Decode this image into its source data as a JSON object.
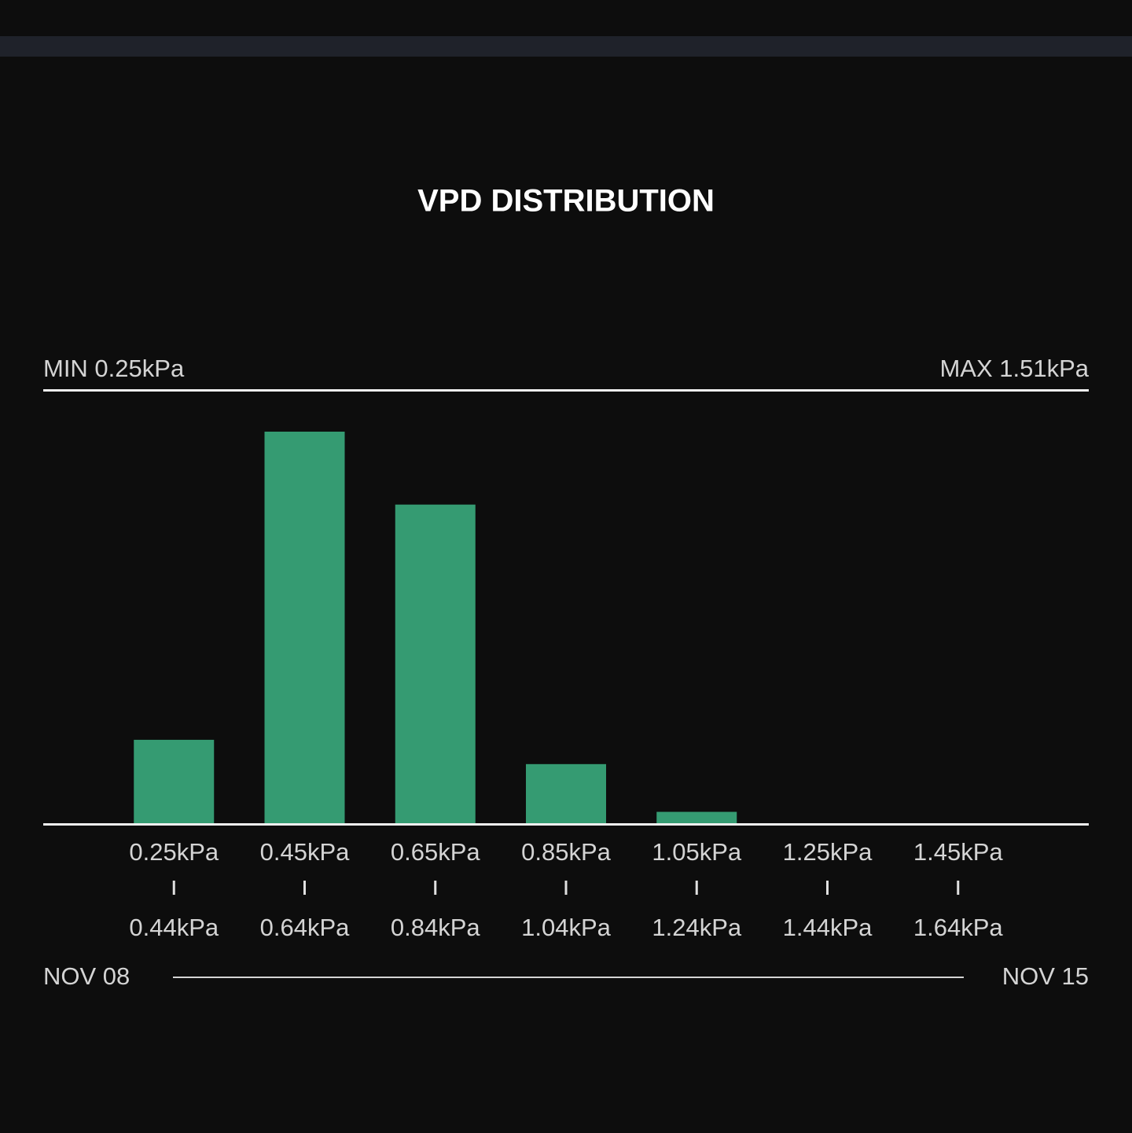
{
  "chart_data": {
    "type": "bar",
    "title": "VPD DISTRIBUTION",
    "min_label": "MIN 0.25kPa",
    "max_label": "MAX 1.51kPa",
    "categories": [
      {
        "from": "0.25kPa",
        "to": "0.44kPa"
      },
      {
        "from": "0.45kPa",
        "to": "0.64kPa"
      },
      {
        "from": "0.65kPa",
        "to": "0.84kPa"
      },
      {
        "from": "0.85kPa",
        "to": "1.04kPa"
      },
      {
        "from": "1.05kPa",
        "to": "1.24kPa"
      },
      {
        "from": "1.25kPa",
        "to": "1.44kPa"
      },
      {
        "from": "1.45kPa",
        "to": "1.64kPa"
      }
    ],
    "values": [
      9.7,
      45.2,
      36.8,
      6.9,
      1.4,
      0,
      0
    ],
    "color": "#359b72",
    "ylim": [
      0,
      50
    ],
    "date_start": "NOV 08",
    "date_end": "NOV 15"
  }
}
